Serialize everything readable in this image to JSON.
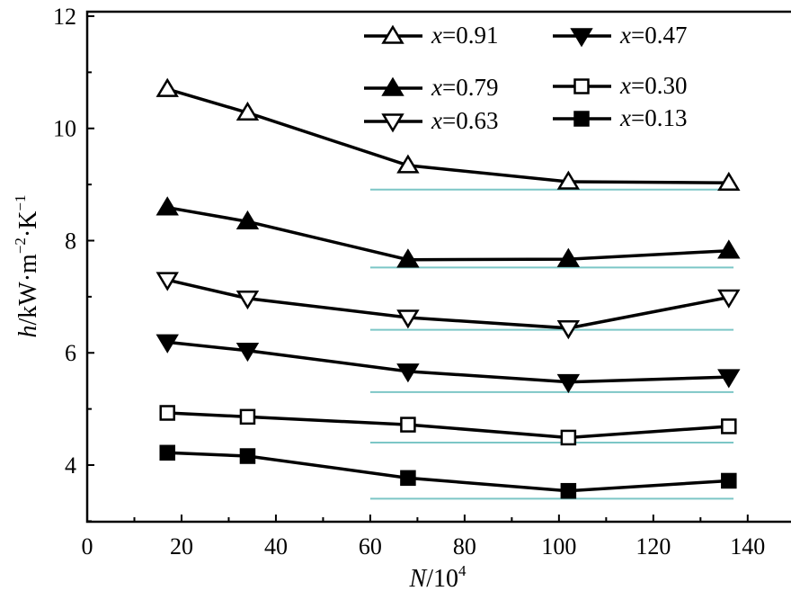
{
  "chart_data": {
    "type": "line",
    "title": "",
    "xlabel": "N/10^4",
    "xlabel_var": "N",
    "xlabel_unit": "/10",
    "xlabel_exp": "4",
    "ylabel_var": "h",
    "ylabel_unit": "/kW·m",
    "ylabel_exp1": "−2",
    "ylabel_mid": "·K",
    "ylabel_exp2": "−1",
    "xlim": [
      0,
      148.8
    ],
    "ylim": [
      2.99,
      12.08
    ],
    "xticks": [
      0,
      20,
      40,
      60,
      80,
      100,
      120,
      140
    ],
    "xtick_labels": [
      "0",
      "20",
      "40",
      "60",
      "80",
      "100",
      "120",
      "140"
    ],
    "yticks": [
      4,
      6,
      8,
      10,
      12
    ],
    "ytick_labels": [
      "4",
      "6",
      "8",
      "10",
      "12"
    ],
    "grid": false,
    "legend_position": "top-right",
    "x": [
      17,
      34,
      68,
      102,
      136
    ],
    "series": [
      {
        "name": "x=0.91",
        "label_var": "x",
        "label_val": "=0.91",
        "marker": "triangle-up-open",
        "values": [
          10.7,
          10.28,
          9.34,
          9.05,
          9.03
        ]
      },
      {
        "name": "x=0.79",
        "label_var": "x",
        "label_val": "=0.79",
        "marker": "triangle-up-filled",
        "values": [
          8.59,
          8.34,
          7.66,
          7.67,
          7.82
        ]
      },
      {
        "name": "x=0.63",
        "label_var": "x",
        "label_val": "=0.63",
        "marker": "triangle-down-open",
        "values": [
          7.3,
          6.97,
          6.63,
          6.44,
          6.99
        ]
      },
      {
        "name": "x=0.47",
        "label_var": "x",
        "label_val": "=0.47",
        "marker": "triangle-down-filled",
        "values": [
          6.19,
          6.04,
          5.67,
          5.48,
          5.57
        ]
      },
      {
        "name": "x=0.30",
        "label_var": "x",
        "label_val": "=0.30",
        "marker": "square-open",
        "values": [
          4.93,
          4.86,
          4.72,
          4.49,
          4.69
        ]
      },
      {
        "name": "x=0.13",
        "label_var": "x",
        "label_val": "=0.13",
        "marker": "square-filled",
        "values": [
          4.22,
          4.16,
          3.77,
          3.54,
          3.72
        ]
      }
    ],
    "reference_lines": {
      "x_range": [
        60,
        137
      ],
      "values": [
        8.91,
        7.52,
        6.41,
        5.3,
        4.4,
        3.4
      ],
      "color": "#7cc6c6"
    }
  }
}
